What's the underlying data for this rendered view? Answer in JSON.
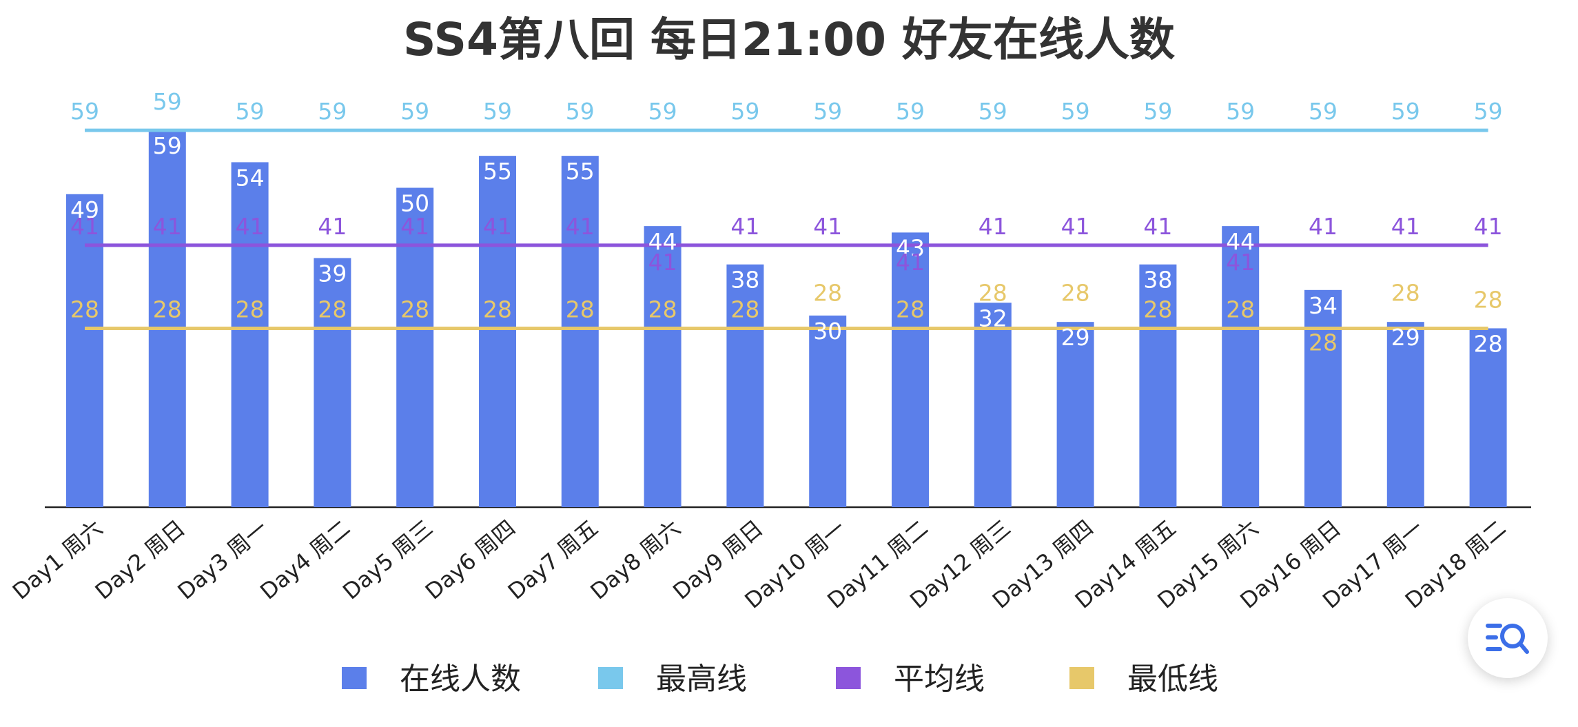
{
  "chart_data": {
    "type": "bar",
    "title": "SS4第八回 每日21:00 好友在线人数",
    "categories": [
      "Day1 周六",
      "Day2 周日",
      "Day3 周一",
      "Day4 周二",
      "Day5 周三",
      "Day6 周四",
      "Day7 周五",
      "Day8 周六",
      "Day9 周日",
      "Day10 周一",
      "Day11 周二",
      "Day12 周三",
      "Day13 周四",
      "Day14 周五",
      "Day15 周六",
      "Day16 周日",
      "Day17 周一",
      "Day18 周二"
    ],
    "ylim": [
      0,
      62
    ],
    "grid": false,
    "legend_position": "bottom",
    "series": [
      {
        "name": "在线人数",
        "type": "bar",
        "color": "#5b7fea",
        "values": [
          49,
          59,
          54,
          39,
          50,
          55,
          55,
          44,
          38,
          30,
          43,
          32,
          29,
          38,
          44,
          34,
          29,
          28
        ]
      },
      {
        "name": "最高线",
        "type": "line",
        "color": "#79c8ec",
        "values": [
          59,
          59,
          59,
          59,
          59,
          59,
          59,
          59,
          59,
          59,
          59,
          59,
          59,
          59,
          59,
          59,
          59,
          59
        ]
      },
      {
        "name": "平均线",
        "type": "line",
        "color": "#8c55dc",
        "values": [
          41,
          41,
          41,
          41,
          41,
          41,
          41,
          41,
          41,
          41,
          41,
          41,
          41,
          41,
          41,
          41,
          41,
          41
        ]
      },
      {
        "name": "最低线",
        "type": "line",
        "color": "#e7c86a",
        "values": [
          28,
          28,
          28,
          28,
          28,
          28,
          28,
          28,
          28,
          28,
          28,
          28,
          28,
          28,
          28,
          28,
          28,
          28
        ]
      }
    ]
  },
  "ui": {
    "fab_icon": "search-list-icon",
    "fab_color": "#3b6ee8"
  }
}
